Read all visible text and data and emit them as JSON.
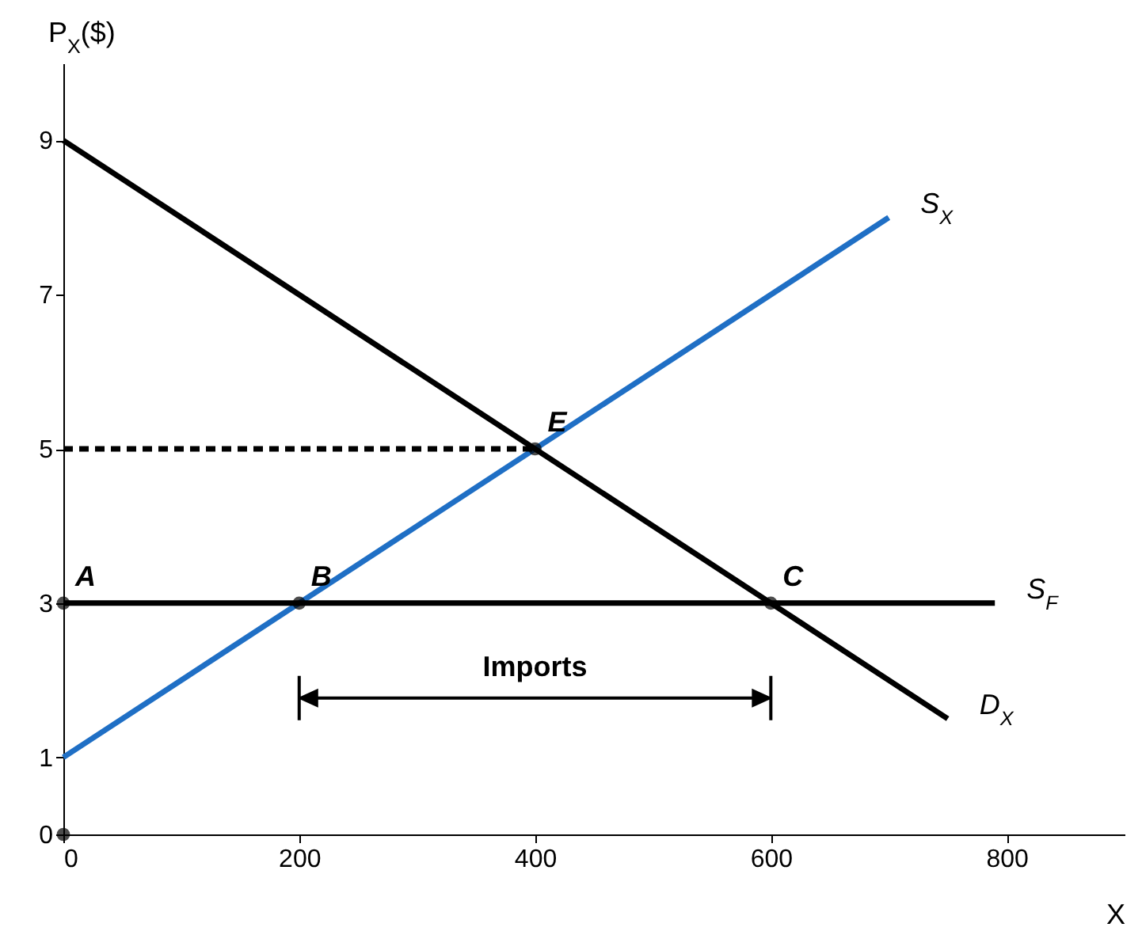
{
  "chart_data": {
    "type": "line",
    "xlabel": "X",
    "ylabel": "P$_{X}$($)",
    "xlim": [
      0,
      900
    ],
    "ylim": [
      0,
      10
    ],
    "xticks": [
      0,
      200,
      400,
      600,
      800
    ],
    "yticks": [
      0,
      1,
      3,
      5,
      7,
      9
    ],
    "grid": false,
    "series": [
      {
        "name": "S$_{X}$",
        "color": "#1f6fc5",
        "x": [
          0,
          700
        ],
        "values": [
          1,
          8
        ]
      },
      {
        "name": "D$_{X}$",
        "color": "#000000",
        "x": [
          0,
          750
        ],
        "values": [
          9,
          1.5
        ]
      },
      {
        "name": "S$_{F}$",
        "color": "#000000",
        "x": [
          0,
          790
        ],
        "values": [
          3,
          3
        ]
      },
      {
        "color": "#000000",
        "x": [
          0,
          400
        ],
        "values": [
          5,
          5
        ],
        "line_style": "dashed"
      },
      {
        "type": "scatter",
        "color": "#000000",
        "x": [
          0,
          0,
          200,
          400,
          600
        ],
        "values": [
          0,
          3,
          3,
          5,
          3
        ],
        "marker": "circle"
      }
    ],
    "annotations": [
      {
        "text": "A",
        "x": 0,
        "y": 3
      },
      {
        "text": "B",
        "x": 200,
        "y": 3
      },
      {
        "text": "E",
        "x": 400,
        "y": 5
      },
      {
        "text": "C",
        "x": 600,
        "y": 3
      },
      "Imports"
    ]
  }
}
